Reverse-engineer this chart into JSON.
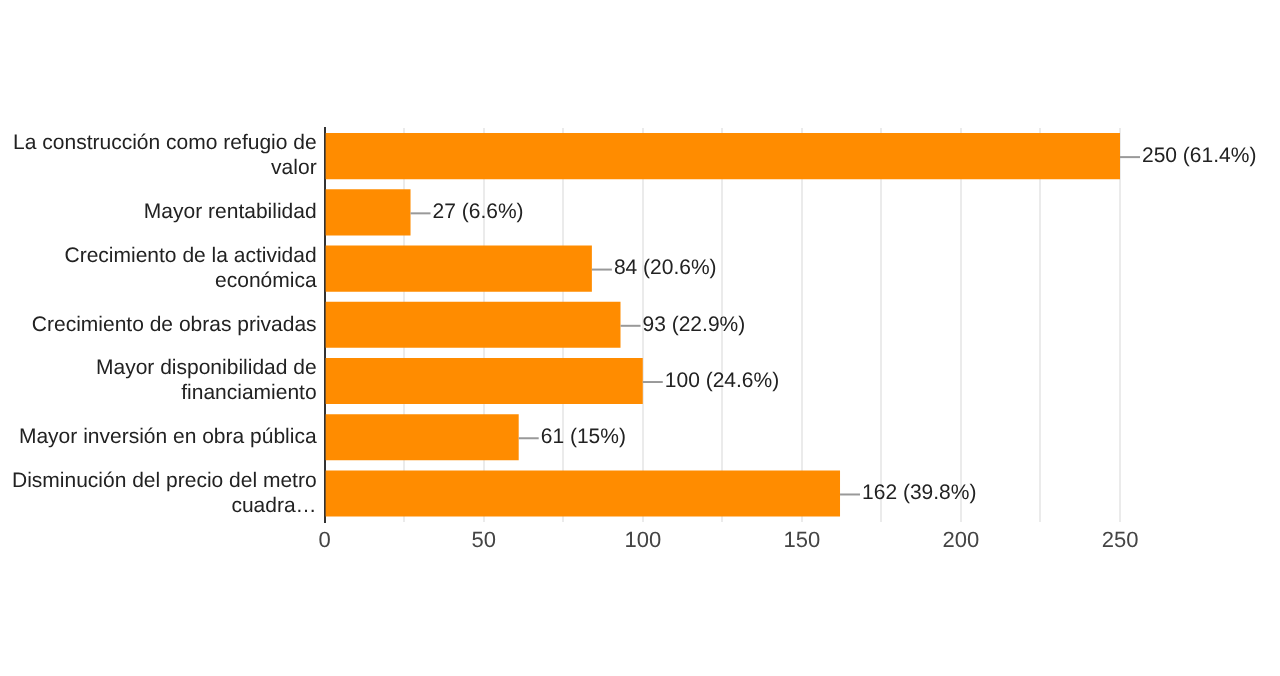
{
  "chart_data": {
    "type": "bar",
    "orientation": "horizontal",
    "categories": [
      "La construcción como refugio de valor",
      "Mayor rentabilidad",
      "Crecimiento de la actividad económica",
      "Crecimiento de obras privadas",
      "Mayor disponibilidad de financiamiento",
      "Mayor inversión en obra pública",
      "Disminución del precio del metro cuadra…"
    ],
    "values": [
      250,
      27,
      84,
      93,
      100,
      61,
      162
    ],
    "value_labels": [
      "250 (61.4%)",
      "27 (6.6%)",
      "84 (20.6%)",
      "93 (22.9%)",
      "100 (24.6%)",
      "61 (15%)",
      "162 (39.8%)"
    ],
    "color": "#ff8c00",
    "xlim": [
      0,
      250
    ],
    "xticks": [
      0,
      {
        "value": 25,
        "label": null
      },
      50,
      {
        "value": 75,
        "label": null
      },
      100,
      {
        "value": 125,
        "label": null
      },
      150,
      {
        "value": 175,
        "label": null
      },
      200,
      {
        "value": 225,
        "label": null
      },
      250
    ],
    "grid": "x"
  }
}
